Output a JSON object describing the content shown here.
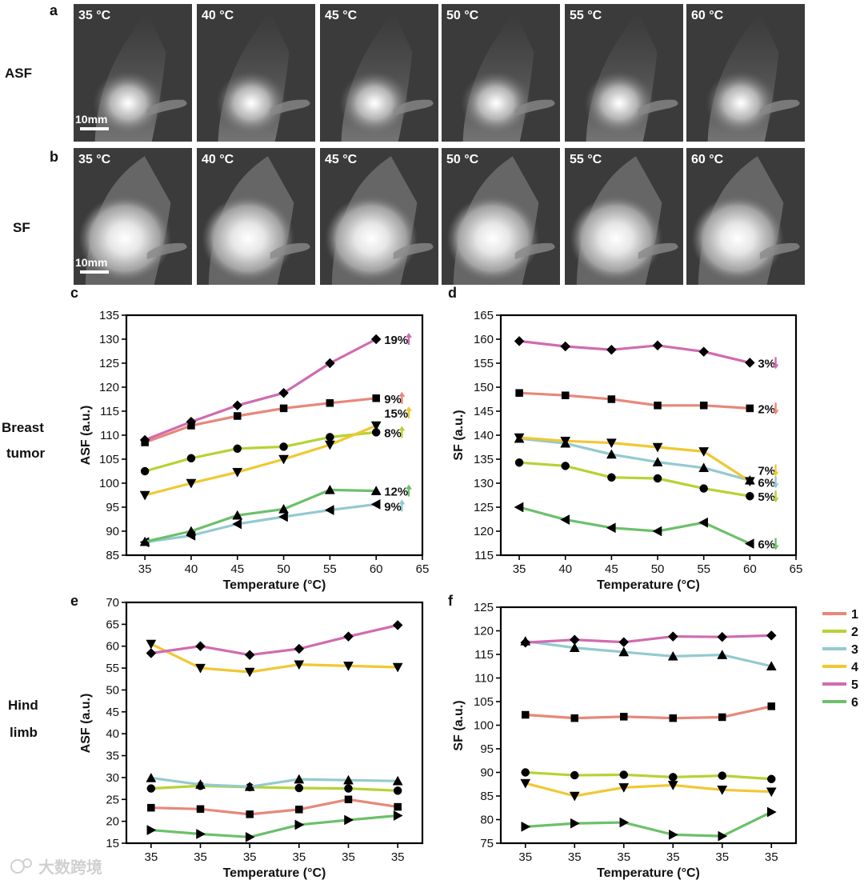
{
  "panels": {
    "a": {
      "letter": "a",
      "row_label": "ASF",
      "temps": [
        "35 °C",
        "40 °C",
        "45 °C",
        "50 °C",
        "55 °C",
        "60 °C"
      ],
      "scale_bar": "10mm"
    },
    "b": {
      "letter": "b",
      "row_label": "SF",
      "temps": [
        "35 °C",
        "40 °C",
        "45 °C",
        "50 °C",
        "55 °C",
        "60 °C"
      ],
      "scale_bar": "10mm"
    }
  },
  "row_labels": {
    "breast_line1": "Breast",
    "breast_line2": "tumor",
    "hind_line1": "Hind",
    "hind_line2": "limb"
  },
  "watermark": "大数跨境",
  "legend": {
    "entries": [
      {
        "label": "1",
        "color": "#E8877A"
      },
      {
        "label": "2",
        "color": "#B5D334"
      },
      {
        "label": "3",
        "color": "#93CAD0"
      },
      {
        "label": "4",
        "color": "#F0C832"
      },
      {
        "label": "5",
        "color": "#D06BB0"
      },
      {
        "label": "6",
        "color": "#6CC06A"
      }
    ]
  },
  "chart_data": [
    {
      "letter": "c",
      "type": "line",
      "xlabel": "Temperature (°C)",
      "ylabel": "ASF (a.u.)",
      "x": [
        35,
        40,
        45,
        50,
        55,
        60
      ],
      "xticks": [
        "35",
        "40",
        "45",
        "50",
        "55",
        "60",
        "65"
      ],
      "xlim": [
        33,
        65
      ],
      "ylim": [
        85,
        135
      ],
      "yticks": [
        85,
        90,
        95,
        100,
        105,
        110,
        115,
        120,
        125,
        130,
        135
      ],
      "series": [
        {
          "name": "1",
          "color": "#E8877A",
          "marker": "square",
          "values": [
            108.5,
            112,
            114,
            115.6,
            116.7,
            117.7
          ],
          "annotation": "9%",
          "arrow": "up"
        },
        {
          "name": "2",
          "color": "#B5D334",
          "marker": "circle",
          "values": [
            102.5,
            105.2,
            107.2,
            107.6,
            109.6,
            110.6
          ],
          "annotation": "8%",
          "arrow": "up"
        },
        {
          "name": "3",
          "color": "#93CAD0",
          "marker": "tri-left",
          "values": [
            87.7,
            89.1,
            91.5,
            93,
            94.4,
            95.6
          ],
          "annotation": "9%",
          "arrow": "up"
        },
        {
          "name": "4",
          "color": "#F0C832",
          "marker": "tri-down",
          "values": [
            97.5,
            100,
            102.3,
            105,
            108,
            112
          ],
          "annotation": "15%",
          "arrow": "up"
        },
        {
          "name": "5",
          "color": "#D06BB0",
          "marker": "diamond",
          "values": [
            109,
            112.8,
            116.2,
            118.8,
            125,
            130
          ],
          "annotation": "19%",
          "arrow": "up"
        },
        {
          "name": "6",
          "color": "#6CC06A",
          "marker": "tri-up",
          "values": [
            87.8,
            90,
            93.3,
            94.6,
            98.6,
            98.4
          ],
          "annotation": "12%",
          "arrow": "up"
        }
      ]
    },
    {
      "letter": "d",
      "type": "line",
      "xlabel": "Temperature (°C)",
      "ylabel": "SF (a.u.)",
      "x": [
        35,
        40,
        45,
        50,
        55,
        60
      ],
      "xticks": [
        "35",
        "40",
        "45",
        "50",
        "55",
        "60",
        "65"
      ],
      "xlim": [
        33,
        65
      ],
      "ylim": [
        115,
        165
      ],
      "yticks": [
        115,
        120,
        125,
        130,
        135,
        140,
        145,
        150,
        155,
        160,
        165
      ],
      "series": [
        {
          "name": "1",
          "color": "#E8877A",
          "marker": "square",
          "values": [
            148.8,
            148.3,
            147.5,
            146.2,
            146.2,
            145.6
          ],
          "annotation": "2%",
          "arrow": "down"
        },
        {
          "name": "2",
          "color": "#B5D334",
          "marker": "circle",
          "values": [
            134.3,
            133.6,
            131.2,
            131,
            128.9,
            127.3
          ],
          "annotation": "5%",
          "arrow": "down"
        },
        {
          "name": "3",
          "color": "#93CAD0",
          "marker": "tri-up",
          "values": [
            139.3,
            138.3,
            136,
            134.4,
            133.2,
            130.6
          ],
          "annotation": "6%",
          "arrow": "down"
        },
        {
          "name": "4",
          "color": "#F0C832",
          "marker": "tri-down",
          "values": [
            139.5,
            138.8,
            138.4,
            137.5,
            136.6,
            130.4
          ],
          "annotation": "7%",
          "arrow": "down"
        },
        {
          "name": "5",
          "color": "#D06BB0",
          "marker": "diamond",
          "values": [
            159.6,
            158.5,
            157.8,
            158.7,
            157.4,
            155.1
          ],
          "annotation": "3%",
          "arrow": "down"
        },
        {
          "name": "6",
          "color": "#6CC06A",
          "marker": "tri-left",
          "values": [
            125,
            122.4,
            120.7,
            120,
            121.8,
            117.4
          ],
          "annotation": "6%",
          "arrow": "down"
        }
      ]
    },
    {
      "letter": "e",
      "type": "line",
      "xlabel": "Temperature (°C)",
      "ylabel": "ASF (a.u.)",
      "x": [
        1,
        2,
        3,
        4,
        5,
        6
      ],
      "xticks": [
        "35",
        "35",
        "35",
        "35",
        "35",
        "35"
      ],
      "xlim": [
        0.5,
        6.5
      ],
      "ylim": [
        15,
        70
      ],
      "yticks": [
        15,
        20,
        25,
        30,
        35,
        40,
        45,
        50,
        55,
        60,
        65,
        70
      ],
      "series": [
        {
          "name": "1",
          "color": "#E8877A",
          "marker": "square",
          "values": [
            23.1,
            22.8,
            21.6,
            22.7,
            25,
            23.3
          ]
        },
        {
          "name": "2",
          "color": "#B5D334",
          "marker": "circle",
          "values": [
            27.5,
            28.1,
            27.8,
            27.6,
            27.5,
            27
          ]
        },
        {
          "name": "3",
          "color": "#93CAD0",
          "marker": "tri-up",
          "values": [
            29.9,
            28.4,
            27.9,
            29.6,
            29.4,
            29.2
          ]
        },
        {
          "name": "4",
          "color": "#F0C832",
          "marker": "tri-down",
          "values": [
            60.5,
            55,
            54.1,
            55.8,
            55.5,
            55.2
          ]
        },
        {
          "name": "5",
          "color": "#D06BB0",
          "marker": "diamond",
          "values": [
            58.4,
            60,
            58,
            59.4,
            62.2,
            64.8
          ]
        },
        {
          "name": "6",
          "color": "#6CC06A",
          "marker": "tri-right",
          "values": [
            18,
            17.1,
            16.4,
            19.2,
            20.3,
            21.3
          ]
        }
      ]
    },
    {
      "letter": "f",
      "type": "line",
      "xlabel": "Temperature (°C)",
      "ylabel": "SF (a.u.)",
      "x": [
        1,
        2,
        3,
        4,
        5,
        6
      ],
      "xticks": [
        "35",
        "35",
        "35",
        "35",
        "35",
        "35"
      ],
      "xlim": [
        0.5,
        6.5
      ],
      "ylim": [
        75,
        125
      ],
      "yticks": [
        75,
        80,
        85,
        90,
        95,
        100,
        105,
        110,
        115,
        120,
        125
      ],
      "series": [
        {
          "name": "1",
          "color": "#E8877A",
          "marker": "square",
          "values": [
            102.2,
            101.5,
            101.8,
            101.5,
            101.7,
            104
          ]
        },
        {
          "name": "2",
          "color": "#B5D334",
          "marker": "circle",
          "values": [
            90,
            89.4,
            89.5,
            89,
            89.3,
            88.6
          ]
        },
        {
          "name": "3",
          "color": "#93CAD0",
          "marker": "tri-up",
          "values": [
            117.8,
            116.4,
            115.5,
            114.6,
            114.9,
            112.5
          ]
        },
        {
          "name": "4",
          "color": "#F0C832",
          "marker": "tri-down",
          "values": [
            87.7,
            85,
            86.8,
            87.3,
            86.3,
            85.9
          ]
        },
        {
          "name": "5",
          "color": "#D06BB0",
          "marker": "diamond",
          "values": [
            117.5,
            118.1,
            117.6,
            118.8,
            118.7,
            119
          ]
        },
        {
          "name": "6",
          "color": "#6CC06A",
          "marker": "tri-right",
          "values": [
            78.5,
            79.2,
            79.4,
            76.8,
            76.5,
            81.6
          ]
        }
      ]
    }
  ]
}
